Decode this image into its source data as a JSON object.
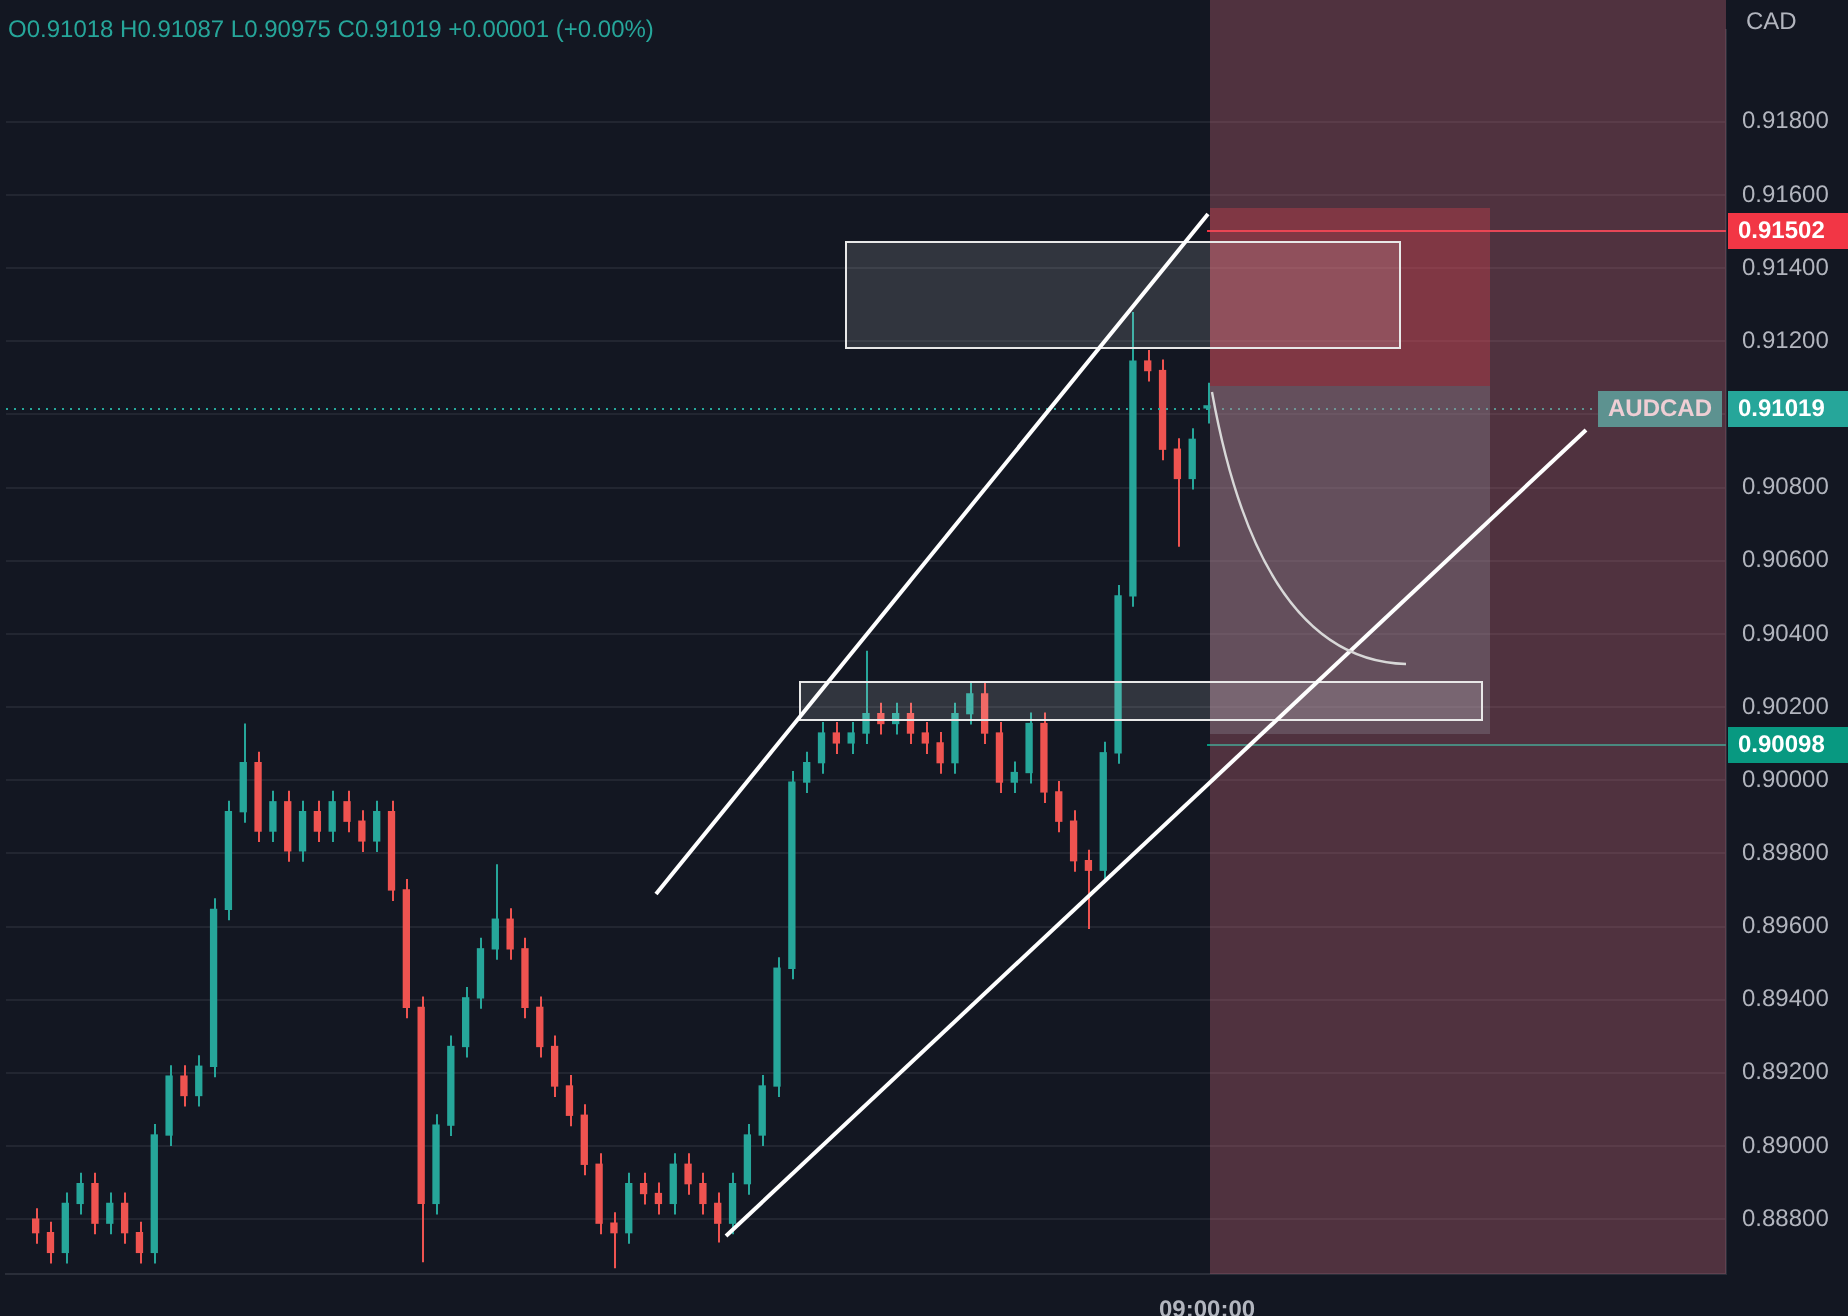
{
  "chart_data": {
    "type": "candlestick",
    "ylabel": "CAD",
    "annotations": [
      "O0.91018 H0.91087 L0.90975 C0.91019 +0.00001 (+0.00%)",
      {
        "text": "AUDCAD",
        "y": 0.91019
      }
    ],
    "categories": [
      null,
      null,
      null,
      null,
      null,
      null,
      null,
      null,
      null,
      null,
      null,
      null,
      null,
      null,
      null,
      null,
      null,
      null,
      null,
      null,
      null,
      null,
      null,
      null,
      null,
      null,
      null,
      null,
      null,
      null,
      null,
      null,
      null,
      null,
      null,
      null,
      null,
      null,
      null,
      null,
      null,
      null,
      null,
      null,
      null,
      null,
      null,
      null,
      null,
      null,
      null,
      null,
      null,
      null,
      null,
      null,
      null,
      null,
      null,
      null,
      null,
      null,
      null,
      null,
      null,
      null,
      null,
      null,
      null,
      null,
      null,
      null,
      null,
      null,
      null,
      null,
      null,
      null,
      null,
      null,
      null,
      "09:00:00",
      null,
      null,
      null,
      null,
      null,
      null,
      null,
      null,
      null,
      null,
      null,
      null,
      null,
      null,
      null,
      null,
      null,
      null,
      null,
      null,
      null,
      null,
      null,
      null,
      null,
      null,
      null,
      null,
      null,
      null,
      null,
      null,
      null,
      null,
      null
    ],
    "ohlc": [
      null,
      null,
      [
        0.888,
        0.8883,
        0.88733,
        0.88763
      ],
      [
        0.88763,
        0.88793,
        0.88679,
        0.88709
      ],
      [
        0.88709,
        0.88873,
        0.88679,
        0.88843
      ],
      [
        0.88843,
        0.88927,
        0.88813,
        0.88897
      ],
      [
        0.88897,
        0.88927,
        0.88759,
        0.88789
      ],
      [
        0.88789,
        0.88873,
        0.88759,
        0.88843
      ],
      [
        0.88843,
        0.88873,
        0.88733,
        0.88763
      ],
      [
        0.88763,
        0.88793,
        0.88679,
        0.88709
      ],
      [
        0.88709,
        0.8906,
        0.88679,
        0.8903
      ],
      [
        0.8903,
        0.89221,
        0.89,
        0.89191
      ],
      [
        0.89191,
        0.89221,
        0.89108,
        0.89138
      ],
      [
        0.89138,
        0.89248,
        0.89108,
        0.89218
      ],
      [
        0.89218,
        0.89677,
        0.89188,
        0.89647
      ],
      [
        0.89647,
        0.89944,
        0.89617,
        0.89914
      ],
      [
        0.89914,
        0.90155,
        0.89884,
        0.90048
      ],
      [
        0.90048,
        0.90078,
        0.89831,
        0.89861
      ],
      [
        0.89861,
        0.89971,
        0.89831,
        0.89941
      ],
      [
        0.89941,
        0.89971,
        0.89777,
        0.89807
      ],
      [
        0.89807,
        0.89944,
        0.89777,
        0.89914
      ],
      [
        0.89914,
        0.89944,
        0.89831,
        0.89861
      ],
      [
        0.89861,
        0.89971,
        0.89831,
        0.89941
      ],
      [
        0.89941,
        0.89971,
        0.89858,
        0.89888
      ],
      [
        0.89888,
        0.89918,
        0.89804,
        0.89834
      ],
      [
        0.89834,
        0.89944,
        0.89804,
        0.89914
      ],
      [
        0.89914,
        0.89944,
        0.8967,
        0.897
      ],
      [
        0.897,
        0.8973,
        0.89349,
        0.89379
      ],
      [
        0.89379,
        0.89409,
        0.88682,
        0.88843
      ],
      [
        0.88843,
        0.89087,
        0.88813,
        0.89057
      ],
      [
        0.89057,
        0.89302,
        0.89027,
        0.89272
      ],
      [
        0.89272,
        0.89435,
        0.89242,
        0.89405
      ],
      [
        0.89405,
        0.89569,
        0.89375,
        0.89539
      ],
      [
        0.89539,
        0.8977,
        0.89509,
        0.8962
      ],
      [
        0.8962,
        0.8965,
        0.89509,
        0.89539
      ],
      [
        0.89539,
        0.89569,
        0.89349,
        0.89379
      ],
      [
        0.89379,
        0.89409,
        0.89242,
        0.89272
      ],
      [
        0.89272,
        0.89302,
        0.89134,
        0.89164
      ],
      [
        0.89164,
        0.89194,
        0.89054,
        0.89084
      ],
      [
        0.89084,
        0.89114,
        0.8892,
        0.8895
      ],
      [
        0.8895,
        0.8898,
        0.88759,
        0.88789
      ],
      [
        0.88789,
        0.88819,
        0.88666,
        0.88763
      ],
      [
        0.88763,
        0.88927,
        0.88733,
        0.88897
      ],
      [
        0.88897,
        0.88927,
        0.8884,
        0.8887
      ],
      [
        0.8887,
        0.889,
        0.88813,
        0.88843
      ],
      [
        0.88843,
        0.8898,
        0.88813,
        0.8895
      ],
      [
        0.8895,
        0.8898,
        0.88867,
        0.88897
      ],
      [
        0.88897,
        0.88927,
        0.88813,
        0.88843
      ],
      [
        0.88843,
        0.88873,
        0.88736,
        0.88789
      ],
      [
        0.88789,
        0.88927,
        0.88759,
        0.88897
      ],
      [
        0.88897,
        0.8906,
        0.88867,
        0.8903
      ],
      [
        0.8903,
        0.89194,
        0.89,
        0.89164
      ],
      [
        0.89164,
        0.89516,
        0.89134,
        0.89486
      ],
      [
        0.89486,
        0.90025,
        0.89456,
        0.89995
      ],
      [
        0.89995,
        0.90078,
        0.89965,
        0.90048
      ],
      [
        0.90048,
        0.90159,
        0.90018,
        0.90129
      ],
      [
        0.90129,
        0.90159,
        0.90072,
        0.90102
      ],
      [
        0.90102,
        0.90159,
        0.90072,
        0.90129
      ],
      [
        0.90129,
        0.90354,
        0.90099,
        0.90182
      ],
      [
        0.90182,
        0.90212,
        0.90125,
        0.90155
      ],
      [
        0.90155,
        0.90212,
        0.90125,
        0.90182
      ],
      [
        0.90182,
        0.90212,
        0.90099,
        0.90129
      ],
      [
        0.90129,
        0.90159,
        0.90072,
        0.90102
      ],
      [
        0.90102,
        0.90132,
        0.90018,
        0.90048
      ],
      [
        0.90048,
        0.90212,
        0.90018,
        0.90182
      ],
      [
        0.90182,
        0.90266,
        0.90152,
        0.90236
      ],
      [
        0.90236,
        0.90266,
        0.90099,
        0.90129
      ],
      [
        0.90129,
        0.90159,
        0.89965,
        0.89995
      ],
      [
        0.89995,
        0.90051,
        0.89965,
        0.90021
      ],
      [
        0.90021,
        0.90185,
        0.89991,
        0.90155
      ],
      [
        0.90155,
        0.90185,
        0.89938,
        0.89968
      ],
      [
        0.89968,
        0.89998,
        0.89858,
        0.89888
      ],
      [
        0.89888,
        0.89918,
        0.8975,
        0.8978
      ],
      [
        0.8978,
        0.8981,
        0.89593,
        0.89754
      ],
      [
        0.89754,
        0.90105,
        0.89724,
        0.90075
      ],
      [
        0.90075,
        0.90534,
        0.90045,
        0.90504
      ],
      [
        0.90504,
        0.9128,
        0.90474,
        0.91146
      ],
      [
        0.91146,
        0.91176,
        0.9109,
        0.9112
      ],
      [
        0.9112,
        0.9115,
        0.90875,
        0.90905
      ],
      [
        0.90905,
        0.90935,
        0.90638,
        0.90825
      ],
      [
        0.90825,
        0.90962,
        0.90795,
        0.90932
      ],
      [
        0.91018,
        0.91087,
        0.90975,
        0.91019
      ],
      null,
      null,
      null,
      null,
      null,
      null,
      null,
      null,
      null,
      null,
      null,
      null,
      null,
      null,
      null,
      null,
      null,
      null,
      null,
      null,
      null,
      null,
      null,
      null,
      null,
      null,
      null,
      null,
      null,
      null,
      null,
      null,
      null,
      null,
      null
    ],
    "ylim": [
      0.8865,
      0.9205
    ],
    "yticks": [
      {
        "value": 0.888,
        "label": "0.88800"
      },
      {
        "value": 0.89,
        "label": "0.89000"
      },
      {
        "value": 0.892,
        "label": "0.89200"
      },
      {
        "value": 0.894,
        "label": "0.89400"
      },
      {
        "value": 0.896,
        "label": "0.89600"
      },
      {
        "value": 0.898,
        "label": "0.89800"
      },
      {
        "value": 0.9,
        "label": "0.90000"
      },
      {
        "value": 0.902,
        "label": "0.90200"
      },
      {
        "value": 0.904,
        "label": "0.90400"
      },
      {
        "value": 0.906,
        "label": "0.90600"
      },
      {
        "value": 0.908,
        "label": "0.90800"
      },
      {
        "value": 0.91,
        "label": null
      },
      {
        "value": 0.912,
        "label": "0.91200"
      },
      {
        "value": 0.914,
        "label": "0.91400"
      },
      {
        "value": 0.916,
        "label": "0.91600"
      },
      {
        "value": 0.918,
        "label": "0.91800"
      }
    ],
    "grid": "y",
    "ref_lines": [
      {
        "axis": "y",
        "value": 0.91019,
        "label": "0.91019",
        "color": "#26a69a",
        "line_style": "dotted"
      },
      {
        "axis": "y",
        "value": 0.91502,
        "label": "0.91502",
        "color": "#f23645"
      },
      {
        "axis": "y",
        "value": 0.90098,
        "label": "0.90098",
        "color": "#089981"
      }
    ]
  }
}
